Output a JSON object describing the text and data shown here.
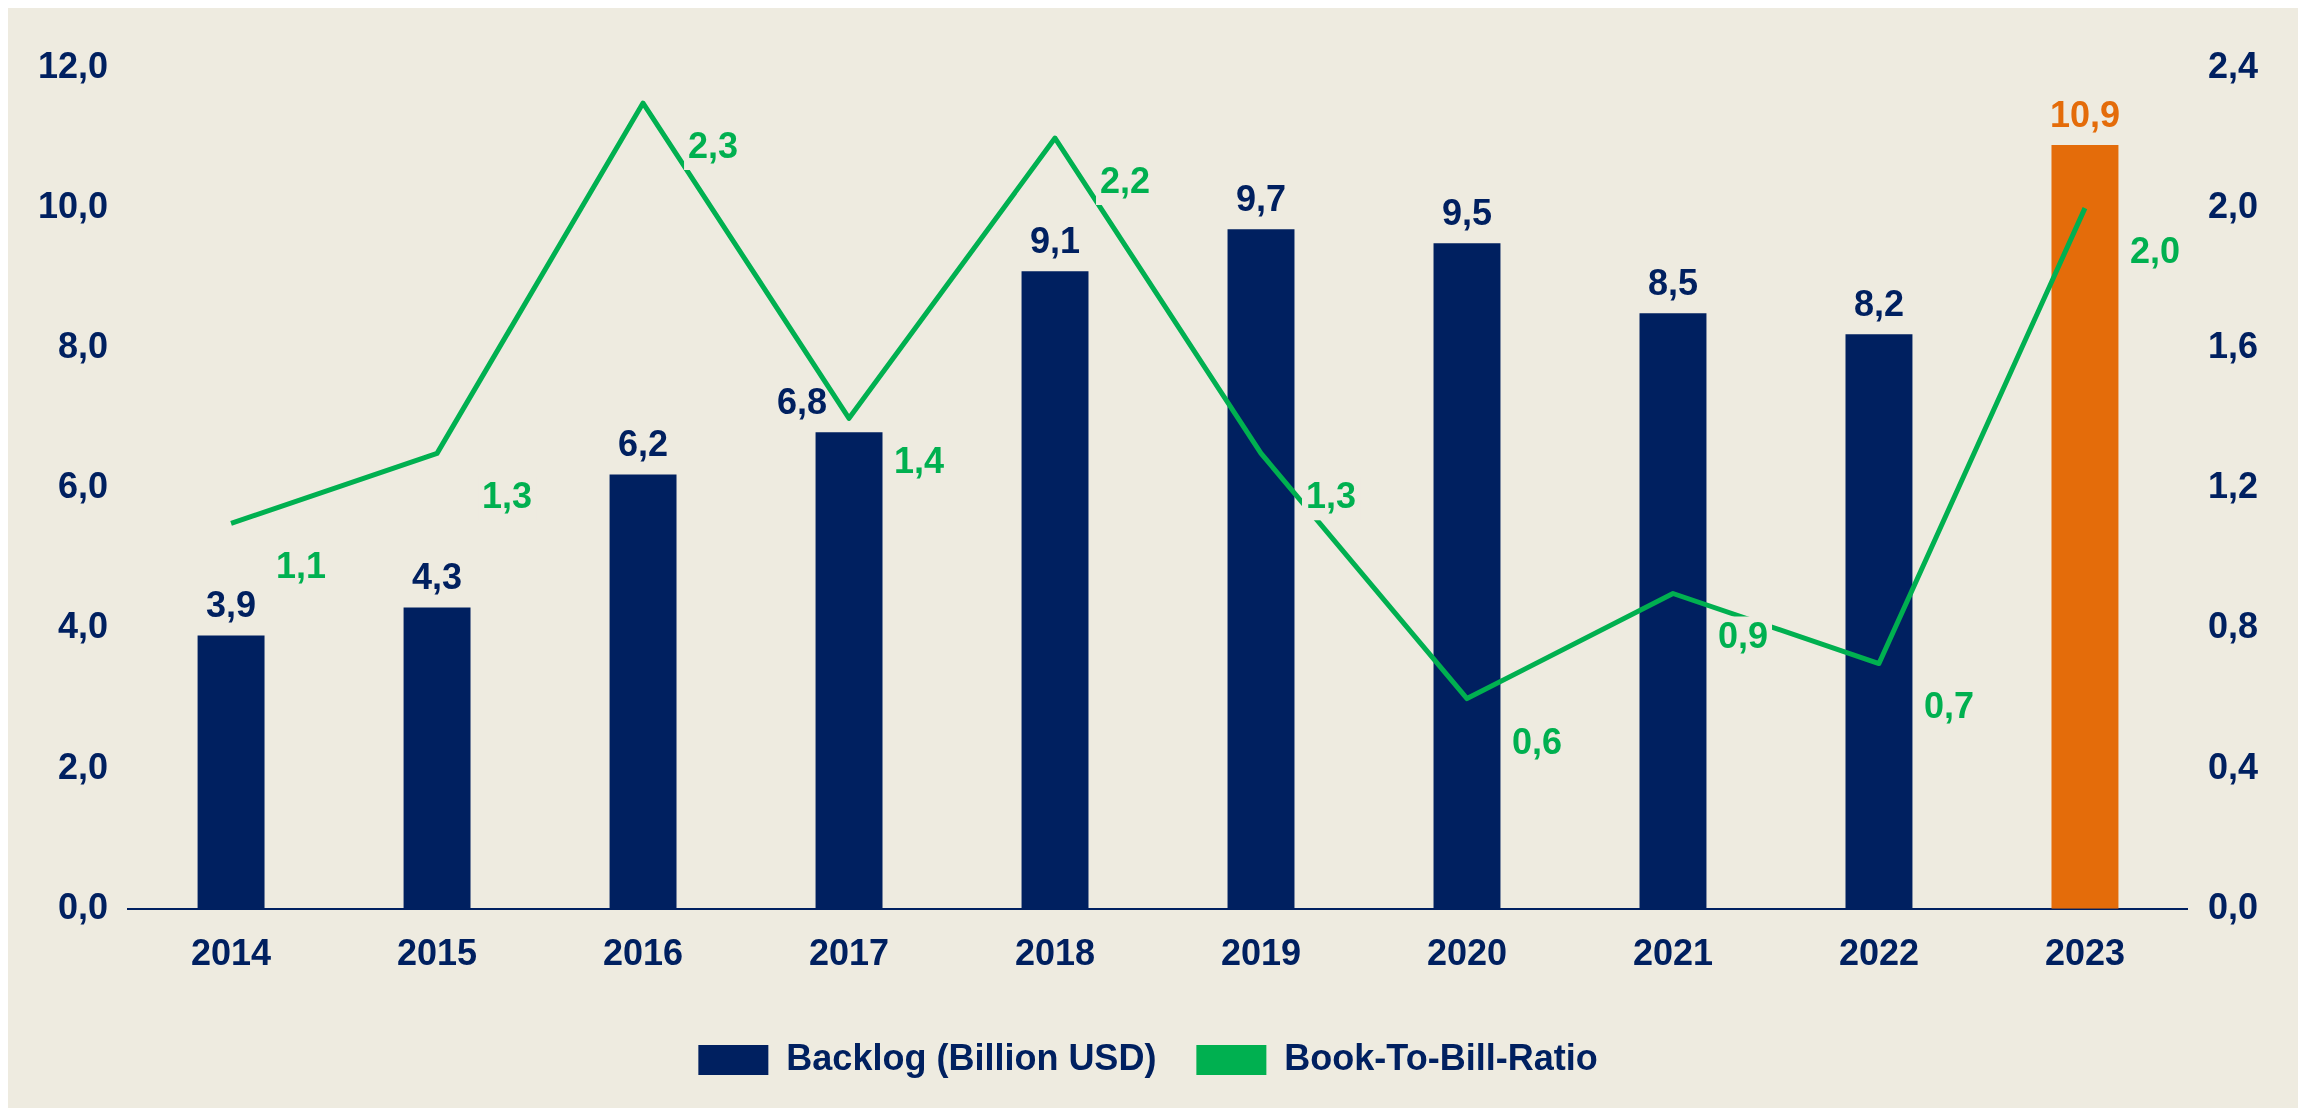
{
  "chart_data": {
    "type": "bar",
    "categories": [
      "2014",
      "2015",
      "2016",
      "2017",
      "2018",
      "2019",
      "2020",
      "2021",
      "2022",
      "2023"
    ],
    "series": [
      {
        "name": "Backlog (Billion USD)",
        "color": "#002060",
        "colors": [
          "#002060",
          "#002060",
          "#002060",
          "#002060",
          "#002060",
          "#002060",
          "#002060",
          "#002060",
          "#002060",
          "#e46c0a"
        ],
        "values": [
          3.9,
          4.3,
          6.2,
          6.8,
          9.1,
          9.7,
          9.5,
          8.5,
          8.2,
          10.9
        ],
        "value_labels": [
          "3,9",
          "4,3",
          "6,2",
          "6,8",
          "9,1",
          "9,7",
          "9,5",
          "8,5",
          "8,2",
          "10,9"
        ]
      },
      {
        "name": "Book-To-Bill-Ratio",
        "type": "line",
        "axis": "y2",
        "color": "#00b050",
        "values": [
          1.1,
          1.3,
          2.3,
          1.4,
          2.2,
          1.3,
          0.6,
          0.9,
          0.7,
          2.0
        ],
        "value_labels": [
          "1,1",
          "1,3",
          "2,3",
          "1,4",
          "2,2",
          "1,3",
          "0,6",
          "0,9",
          "0,7",
          "2,0"
        ]
      }
    ],
    "ylim": [
      0,
      12
    ],
    "yticks": [
      {
        "value": 0,
        "label": "0,0"
      },
      {
        "value": 2,
        "label": "2,0"
      },
      {
        "value": 4,
        "label": "4,0"
      },
      {
        "value": 6,
        "label": "6,0"
      },
      {
        "value": 8,
        "label": "8,0"
      },
      {
        "value": 10,
        "label": "10,0"
      },
      {
        "value": 12,
        "label": "12,0"
      }
    ],
    "y2lim": [
      0,
      2.4
    ],
    "y2ticks": [
      {
        "value": 0,
        "label": "0,0"
      },
      {
        "value": 0.4,
        "label": "0,4"
      },
      {
        "value": 0.8,
        "label": "0,8"
      },
      {
        "value": 1.2,
        "label": "1,2"
      },
      {
        "value": 1.6,
        "label": "1,6"
      },
      {
        "value": 2,
        "label": "2,0"
      },
      {
        "value": 2.4,
        "label": "2,4"
      }
    ],
    "grid": false,
    "legend": "bottom",
    "marker": "none"
  }
}
